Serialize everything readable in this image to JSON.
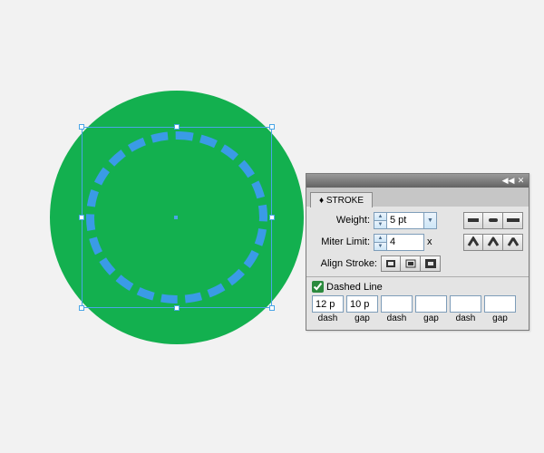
{
  "canvas": {
    "green_circle_color": "#13b04f",
    "selection_color": "#4aa5e6",
    "dash_color": "#3a9be6"
  },
  "panel": {
    "title_prefix": "♦",
    "title": "STROKE",
    "weight": {
      "label": "Weight:",
      "value": "5 pt"
    },
    "miter": {
      "label": "Miter Limit:",
      "value": "4",
      "suffix": "x"
    },
    "align": {
      "label": "Align Stroke:"
    },
    "dashed": {
      "label": "Dashed Line",
      "checked": true
    },
    "dash_values": [
      "12 p",
      "10 p",
      "",
      "",
      "",
      ""
    ],
    "dash_labels": [
      "dash",
      "gap",
      "dash",
      "gap",
      "dash",
      "gap"
    ]
  }
}
